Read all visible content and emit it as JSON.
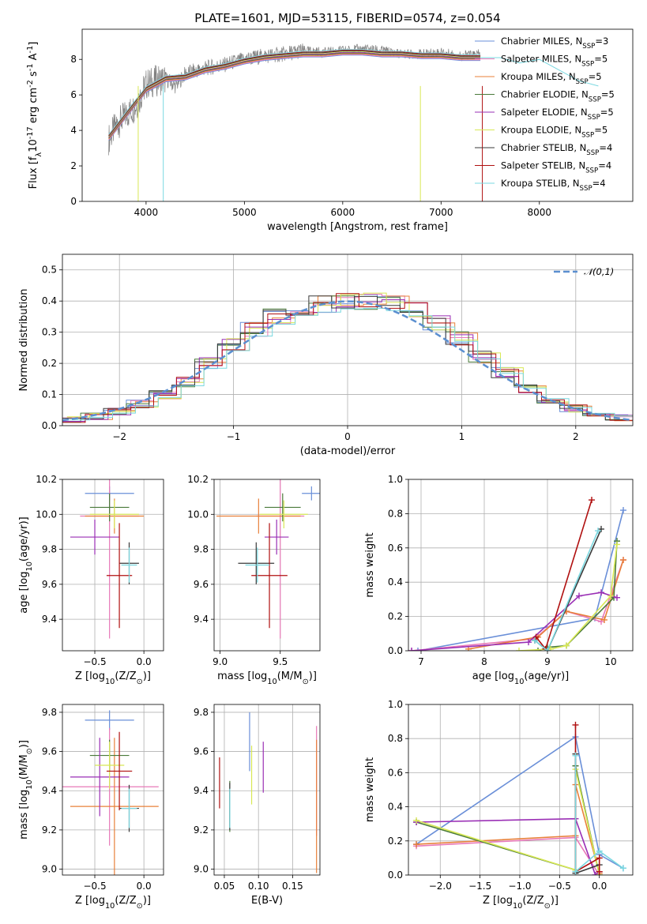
{
  "figure": {
    "title": "PLATE=1601, MJD=53115, FIBERID=0574, z=0.054"
  },
  "chart_data": [
    {
      "id": "spectrum",
      "type": "line",
      "xlabel": "wavelength [Angstrom, rest frame]",
      "ylabel": "Flux [f$_\\lambda$10$^{-17}$ erg cm$^{-2}$ s$^{-1}$ A$^{-1}$]",
      "xlim": [
        3350,
        8950
      ],
      "ylim": [
        0,
        9.7
      ],
      "xticks": [
        4000,
        5000,
        6000,
        7000,
        8000
      ],
      "yticks": [
        0,
        2,
        4,
        6,
        8
      ],
      "grid": false,
      "legend_position": "top-right",
      "data_color": "#808080",
      "data_x": [
        3620,
        3700,
        3800,
        3900,
        3950,
        4000,
        4100,
        4200,
        4300,
        4400,
        4600,
        4800,
        5000,
        5200,
        5400,
        5600,
        5800,
        6000,
        6200,
        6400,
        6600,
        6800,
        7000,
        7200,
        7400
      ],
      "data_y": [
        3.5,
        4.3,
        4.9,
        5.4,
        6.0,
        6.6,
        6.8,
        6.9,
        6.5,
        7.2,
        7.5,
        7.7,
        8.0,
        8.2,
        8.3,
        8.5,
        8.4,
        8.5,
        8.6,
        8.5,
        8.3,
        8.3,
        8.4,
        8.2,
        8.3
      ],
      "series": [
        {
          "name": "Chabrier MILES, N$_{SSP}$=3",
          "color": "#6a8fd8"
        },
        {
          "name": "Salpeter MILES, N$_{SSP}$=5",
          "color": "#e879b8"
        },
        {
          "name": "Kroupa MILES, N$_{SSP}$=5",
          "color": "#e8803a"
        },
        {
          "name": "Chabrier ELODIE, N$_{SSP}$=5",
          "color": "#4a7a3a"
        },
        {
          "name": "Salpeter ELODIE, N$_{SSP}$=5",
          "color": "#9a2fb5"
        },
        {
          "name": "Kroupa ELODIE, N$_{SSP}$=5",
          "color": "#d8e855"
        },
        {
          "name": "Chabrier STELIB, N$_{SSP}$=4",
          "color": "#3a3a3a"
        },
        {
          "name": "Salpeter STELIB, N$_{SSP}$=4",
          "color": "#b01010"
        },
        {
          "name": "Kroupa STELIB, N$_{SSP}$=4",
          "color": "#7ad8e0"
        }
      ],
      "model_x": [
        3620,
        3800,
        4000,
        4200,
        4400,
        4600,
        4800,
        5000,
        5200,
        5400,
        5600,
        5800,
        6000,
        6200,
        6400,
        6600,
        6800,
        7000,
        7200,
        7400
      ],
      "model_y": [
        3.6,
        4.9,
        6.3,
        6.9,
        7.0,
        7.4,
        7.6,
        7.9,
        8.1,
        8.2,
        8.3,
        8.3,
        8.4,
        8.4,
        8.3,
        8.3,
        8.2,
        8.2,
        8.1,
        8.1
      ],
      "model_tail_x": [
        7400,
        7600,
        7800,
        8000,
        8200,
        8400,
        8600
      ],
      "model_tail_y": [
        8.1,
        8.1,
        7.8,
        8.0,
        7.4,
        6.8,
        6.5
      ]
    },
    {
      "id": "residuals",
      "type": "line",
      "xlabel": "(data-model)/error",
      "ylabel": "Normed distribution",
      "xlim": [
        -2.5,
        2.5
      ],
      "ylim": [
        0,
        0.55
      ],
      "xticks": [
        -2,
        -1,
        0,
        1,
        2
      ],
      "xticklabels": [
        "−2",
        "−1",
        "0",
        "1",
        "2"
      ],
      "yticks": [
        0.0,
        0.1,
        0.2,
        0.3,
        0.4,
        0.5
      ],
      "yticklabels": [
        "0.0",
        "0.1",
        "0.2",
        "0.3",
        "0.4",
        "0.5"
      ],
      "grid": true,
      "legend_position": "top-right",
      "legend_label": "$\\mathcal{N}(0,1)$",
      "gauss_color": "#5b8fd0",
      "bins_x": [
        -2.5,
        -2.3,
        -2.1,
        -1.9,
        -1.7,
        -1.5,
        -1.3,
        -1.1,
        -0.9,
        -0.7,
        -0.5,
        -0.3,
        -0.1,
        0.1,
        0.3,
        0.5,
        0.7,
        0.9,
        1.1,
        1.3,
        1.5,
        1.7,
        1.9,
        2.1,
        2.3,
        2.5
      ],
      "hist_values": [
        0.02,
        0.03,
        0.045,
        0.07,
        0.1,
        0.14,
        0.2,
        0.26,
        0.31,
        0.35,
        0.38,
        0.39,
        0.4,
        0.4,
        0.39,
        0.37,
        0.33,
        0.28,
        0.22,
        0.17,
        0.12,
        0.085,
        0.055,
        0.035,
        0.025
      ]
    },
    {
      "id": "z-age",
      "type": "scatter",
      "xlabel": "Z [log$_{10}$(Z/Z$_\\odot$)]",
      "ylabel": "age  [log$_{10}$(age/yr)]",
      "xlim": [
        -0.83,
        0.2
      ],
      "ylim": [
        9.22,
        10.2
      ],
      "xticks": [
        -0.5,
        0.0
      ],
      "xticklabels": [
        "−0.5",
        "0.0"
      ],
      "yticks": [
        9.4,
        9.6,
        9.8,
        10.0,
        10.2
      ],
      "yticklabels": [
        "9.4",
        "9.6",
        "9.8",
        "10.0",
        "10.2"
      ],
      "grid": true,
      "points": [
        {
          "x": -0.35,
          "xerr": 0.25,
          "y": 10.12,
          "yerr": 0.04,
          "color": "#6a8fd8"
        },
        {
          "x": -0.35,
          "xerr": 0.3,
          "y": 9.99,
          "yerr": 0.7,
          "color": "#e879b8"
        },
        {
          "x": -0.3,
          "xerr": 0.3,
          "y": 9.99,
          "yerr": 0.1,
          "color": "#e8803a"
        },
        {
          "x": -0.35,
          "xerr": 0.2,
          "y": 10.04,
          "yerr": 0.08,
          "color": "#4a7a3a"
        },
        {
          "x": -0.5,
          "xerr": 0.25,
          "y": 9.87,
          "yerr": 0.1,
          "color": "#9a2fb5"
        },
        {
          "x": -0.3,
          "xerr": 0.25,
          "y": 10.0,
          "yerr": 0.08,
          "color": "#d8e855"
        },
        {
          "x": -0.15,
          "xerr": 0.1,
          "y": 9.72,
          "yerr": 0.12,
          "color": "#3a3a3a"
        },
        {
          "x": -0.25,
          "xerr": 0.13,
          "y": 9.65,
          "yerr": 0.3,
          "color": "#b01010"
        },
        {
          "x": -0.15,
          "xerr": 0.08,
          "y": 9.71,
          "yerr": 0.1,
          "color": "#7ad8e0"
        }
      ]
    },
    {
      "id": "mass-age",
      "type": "scatter",
      "xlabel": "mass [log$_{10}$(M/M$_\\odot$)]",
      "ylabel": "",
      "xlim": [
        8.95,
        9.83
      ],
      "ylim": [
        9.22,
        10.2
      ],
      "xticks": [
        9.0,
        9.5
      ],
      "xticklabels": [
        "9.0",
        "9.5"
      ],
      "yticks": [
        9.4,
        9.6,
        9.8,
        10.0,
        10.2
      ],
      "yticklabels": [
        "9.4",
        "9.6",
        "9.8",
        "10.0",
        "10.2"
      ],
      "grid": true,
      "points": [
        {
          "x": 9.76,
          "xerr": 0.08,
          "y": 10.12,
          "yerr": 0.04,
          "color": "#6a8fd8"
        },
        {
          "x": 9.5,
          "xerr": 0.2,
          "y": 9.99,
          "yerr": 0.7,
          "color": "#e879b8"
        },
        {
          "x": 9.32,
          "xerr": 0.35,
          "y": 9.99,
          "yerr": 0.1,
          "color": "#e8803a"
        },
        {
          "x": 9.52,
          "xerr": 0.15,
          "y": 10.04,
          "yerr": 0.08,
          "color": "#4a7a3a"
        },
        {
          "x": 9.47,
          "xerr": 0.1,
          "y": 9.87,
          "yerr": 0.1,
          "color": "#9a2fb5"
        },
        {
          "x": 9.53,
          "xerr": 0.2,
          "y": 10.0,
          "yerr": 0.08,
          "color": "#d8e855"
        },
        {
          "x": 9.3,
          "xerr": 0.15,
          "y": 9.72,
          "yerr": 0.12,
          "color": "#3a3a3a"
        },
        {
          "x": 9.41,
          "xerr": 0.15,
          "y": 9.65,
          "yerr": 0.3,
          "color": "#b01010"
        },
        {
          "x": 9.31,
          "xerr": 0.1,
          "y": 9.71,
          "yerr": 0.1,
          "color": "#7ad8e0"
        }
      ]
    },
    {
      "id": "age-weight",
      "type": "line",
      "xlabel": "age  [log$_{10}$(age/yr)]",
      "ylabel": "mass weight",
      "xlim": [
        6.8,
        10.35
      ],
      "ylim": [
        0,
        1.0
      ],
      "xticks": [
        7,
        8,
        9,
        10
      ],
      "xticklabels": [
        "7",
        "8",
        "9",
        "10"
      ],
      "yticks": [
        0,
        0.2,
        0.4,
        0.6,
        0.8,
        1.0
      ],
      "yticklabels": [
        "0.0",
        "0.2",
        "0.4",
        "0.6",
        "0.8",
        "1.0"
      ],
      "grid": true,
      "series": [
        {
          "color": "#6a8fd8",
          "x": [
            6.95,
            9.75,
            10.2
          ],
          "y": [
            0.0,
            0.19,
            0.82
          ]
        },
        {
          "color": "#e879b8",
          "x": [
            6.85,
            8.8,
            9.3,
            9.85,
            10.2
          ],
          "y": [
            0.0,
            0.07,
            0.23,
            0.17,
            0.53
          ]
        },
        {
          "color": "#e8803a",
          "x": [
            7.75,
            8.85,
            9.3,
            9.9,
            10.2
          ],
          "y": [
            0.01,
            0.08,
            0.23,
            0.18,
            0.53
          ]
        },
        {
          "color": "#4a7a3a",
          "x": [
            8.85,
            9.0,
            9.3,
            10.05,
            10.1
          ],
          "y": [
            0.0,
            0.02,
            0.03,
            0.31,
            0.64
          ]
        },
        {
          "color": "#9a2fb5",
          "x": [
            6.85,
            8.7,
            9.5,
            9.85,
            10.1
          ],
          "y": [
            0.0,
            0.05,
            0.32,
            0.34,
            0.31
          ]
        },
        {
          "color": "#d8e855",
          "x": [
            8.55,
            9.05,
            9.3,
            10.0,
            10.1
          ],
          "y": [
            0.0,
            0.01,
            0.03,
            0.32,
            0.62
          ]
        },
        {
          "color": "#3a3a3a",
          "x": [
            8.8,
            9.0,
            9.85
          ],
          "y": [
            0.06,
            0.0,
            0.71
          ]
        },
        {
          "color": "#b01010",
          "x": [
            8.82,
            8.97,
            9.7
          ],
          "y": [
            0.08,
            0.01,
            0.88
          ]
        },
        {
          "color": "#7ad8e0",
          "x": [
            8.8,
            9.0,
            9.8
          ],
          "y": [
            0.06,
            0.0,
            0.7
          ]
        }
      ]
    },
    {
      "id": "z-mass",
      "type": "scatter",
      "xlabel": "Z [log$_{10}$(Z/Z$_\\odot$)]",
      "ylabel": "mass [log$_{10}$(M/M$_\\odot$)]",
      "xlim": [
        -0.83,
        0.2
      ],
      "ylim": [
        8.97,
        9.84
      ],
      "xticks": [
        -0.5,
        0.0
      ],
      "xticklabels": [
        "−0.5",
        "0.0"
      ],
      "yticks": [
        9.0,
        9.2,
        9.4,
        9.6,
        9.8
      ],
      "yticklabels": [
        "9.0",
        "9.2",
        "9.4",
        "9.6",
        "9.8"
      ],
      "grid": true,
      "points": [
        {
          "x": -0.35,
          "xerr": 0.25,
          "y": 9.76,
          "yerr": 0.05,
          "color": "#6a8fd8"
        },
        {
          "x": -0.35,
          "xerr": 0.5,
          "y": 9.42,
          "yerr": 0.3,
          "color": "#e879b8"
        },
        {
          "x": -0.3,
          "xerr": 0.45,
          "y": 9.32,
          "yerr": 0.35,
          "color": "#e8803a"
        },
        {
          "x": -0.35,
          "xerr": 0.2,
          "y": 9.58,
          "yerr": 0.08,
          "color": "#4a7a3a"
        },
        {
          "x": -0.45,
          "xerr": 0.3,
          "y": 9.47,
          "yerr": 0.2,
          "color": "#9a2fb5"
        },
        {
          "x": -0.35,
          "xerr": 0.15,
          "y": 9.53,
          "yerr": 0.12,
          "color": "#d8e855"
        },
        {
          "x": -0.15,
          "xerr": 0.1,
          "y": 9.31,
          "yerr": 0.12,
          "color": "#3a3a3a"
        },
        {
          "x": -0.25,
          "xerr": 0.13,
          "y": 9.5,
          "yerr": 0.2,
          "color": "#b01010"
        },
        {
          "x": -0.15,
          "xerr": 0.08,
          "y": 9.31,
          "yerr": 0.1,
          "color": "#7ad8e0"
        }
      ]
    },
    {
      "id": "ebv-mass",
      "type": "scatter",
      "xlabel": "E(B-V)",
      "ylabel": "",
      "xlim": [
        0.035,
        0.19
      ],
      "ylim": [
        8.97,
        9.84
      ],
      "xticks": [
        0.05,
        0.1,
        0.15
      ],
      "xticklabels": [
        "0.05",
        "0.10",
        "0.15"
      ],
      "yticks": [
        9.0,
        9.2,
        9.4,
        9.6,
        9.8
      ],
      "yticklabels": [
        "9.0",
        "9.2",
        "9.4",
        "9.6",
        "9.8"
      ],
      "grid": true,
      "points": [
        {
          "x": 0.087,
          "y": 9.65,
          "yerr": 0.15,
          "color": "#6a8fd8"
        },
        {
          "x": 0.185,
          "y": 9.45,
          "yerr": 0.28,
          "color": "#e879b8"
        },
        {
          "x": 0.185,
          "y": 9.32,
          "yerr": 0.34,
          "color": "#e8803a"
        },
        {
          "x": 0.058,
          "y": 9.32,
          "yerr": 0.13,
          "color": "#4a7a3a"
        },
        {
          "x": 0.107,
          "y": 9.52,
          "yerr": 0.13,
          "color": "#9a2fb5"
        },
        {
          "x": 0.09,
          "y": 9.48,
          "yerr": 0.15,
          "color": "#d8e855"
        },
        {
          "x": 0.058,
          "y": 9.32,
          "yerr": 0.12,
          "color": "#3a3a3a"
        },
        {
          "x": 0.043,
          "y": 9.44,
          "yerr": 0.13,
          "color": "#b01010"
        },
        {
          "x": 0.058,
          "y": 9.31,
          "yerr": 0.1,
          "color": "#7ad8e0"
        }
      ]
    },
    {
      "id": "z-weight",
      "type": "line",
      "xlabel": "Z [log$_{10}$(Z/Z$_\\odot$)]",
      "ylabel": "mass weight",
      "xlim": [
        -2.4,
        0.42
      ],
      "ylim": [
        0,
        1.0
      ],
      "xticks": [
        -2.0,
        -1.5,
        -1.0,
        -0.5,
        0.0
      ],
      "xticklabels": [
        "−2.0",
        "−1.5",
        "−1.0",
        "−0.5",
        "0.0"
      ],
      "yticks": [
        0,
        0.2,
        0.4,
        0.6,
        0.8,
        1.0
      ],
      "yticklabels": [
        "0.0",
        "0.2",
        "0.4",
        "0.6",
        "0.8",
        "1.0"
      ],
      "grid": true,
      "series": [
        {
          "color": "#6a8fd8",
          "x": [
            -2.3,
            -0.3,
            0.0,
            0.3
          ],
          "y": [
            0.18,
            0.81,
            0.12,
            0.04
          ]
        },
        {
          "color": "#e879b8",
          "x": [
            -2.3,
            -0.3,
            0.0
          ],
          "y": [
            0.17,
            0.22,
            0.0
          ]
        },
        {
          "color": "#e8803a",
          "x": [
            -2.3,
            -0.3,
            -0.3,
            0.0
          ],
          "y": [
            0.18,
            0.23,
            0.53,
            0.01
          ]
        },
        {
          "color": "#4a7a3a",
          "x": [
            -2.3,
            -0.3,
            -0.3,
            0.0
          ],
          "y": [
            0.31,
            0.03,
            0.64,
            0.0
          ]
        },
        {
          "color": "#9a2fb5",
          "x": [
            -2.3,
            -0.3,
            -0.05,
            0.0
          ],
          "y": [
            0.31,
            0.33,
            0.0,
            0.02
          ]
        },
        {
          "color": "#d8e855",
          "x": [
            -2.3,
            -0.3,
            -0.3,
            0.0
          ],
          "y": [
            0.32,
            0.03,
            0.62,
            0.0
          ]
        },
        {
          "color": "#3a3a3a",
          "x": [
            -0.3,
            -0.3,
            0.0
          ],
          "y": [
            0.71,
            0.01,
            0.06
          ]
        },
        {
          "color": "#b01010",
          "x": [
            -0.3,
            -0.3,
            0.0,
            0.0
          ],
          "y": [
            0.88,
            0.02,
            0.1,
            0.02
          ]
        },
        {
          "color": "#7ad8e0",
          "x": [
            -0.3,
            -0.3,
            0.0,
            0.3
          ],
          "y": [
            0.7,
            0.02,
            0.14,
            0.04
          ]
        }
      ]
    }
  ]
}
